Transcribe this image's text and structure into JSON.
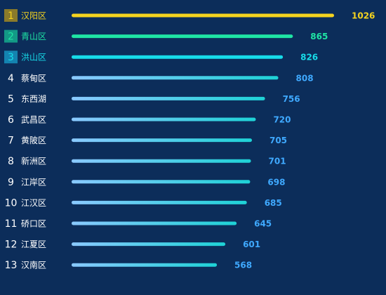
{
  "colors": {
    "background": "#0c2d5a",
    "gold": "#f5d31f",
    "green": "#1fe4a4",
    "cyan": "#17dce9",
    "blue_gradient_start": "#8ac9ff",
    "blue_gradient_end": "#1ed2d6",
    "default_value_text": "#3fa9ff",
    "rank1_badge": "#8a7a2a",
    "rank2_badge": "#139a86",
    "rank3_badge": "#1483b0"
  },
  "chart_data": {
    "type": "bar",
    "orientation": "horizontal",
    "ranks": [
      "1",
      "2",
      "3",
      "4",
      "5",
      "6",
      "7",
      "8",
      "9",
      "10",
      "11",
      "12",
      "13"
    ],
    "categories": [
      "汉阳区",
      "青山区",
      "洪山区",
      "蔡甸区",
      "东西湖",
      "武昌区",
      "黄陂区",
      "新洲区",
      "江岸区",
      "江汉区",
      "硚口区",
      "江夏区",
      "汉南区"
    ],
    "values": [
      1026,
      865,
      826,
      808,
      756,
      720,
      705,
      701,
      698,
      685,
      645,
      601,
      568
    ],
    "xlim": [
      0,
      1026
    ],
    "grid": false,
    "legend": "none"
  }
}
